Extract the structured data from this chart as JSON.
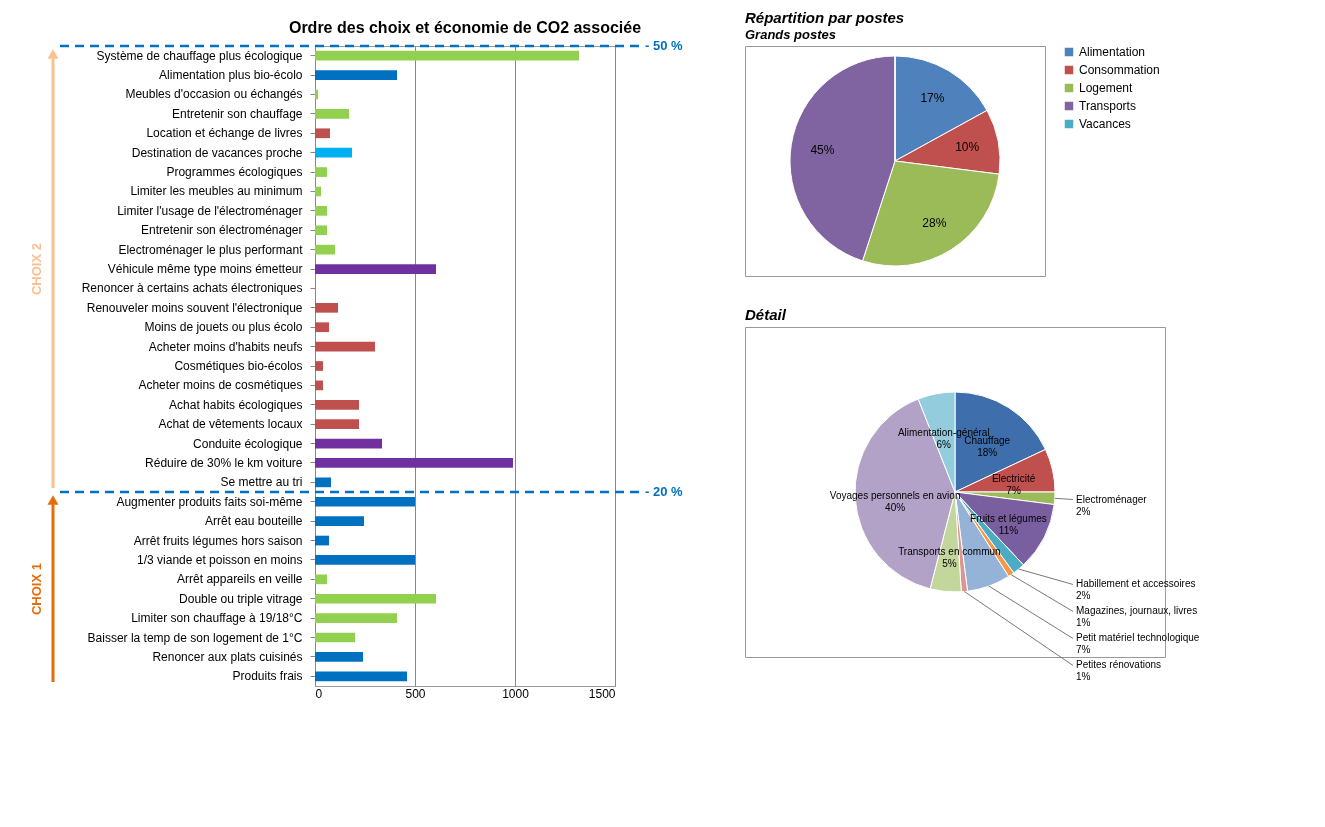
{
  "chart_data": [
    {
      "type": "bar",
      "orientation": "horizontal",
      "title": "Ordre des choix et économie de CO2 associée",
      "categories": [
        "Système de chauffage plus écologique",
        "Alimentation plus bio-écolo",
        "Meubles d'occasion ou échangés",
        "Entretenir son chauffage",
        "Location et échange de livres",
        "Destination de vacances proche",
        "Programmes écologiques",
        "Limiter les meubles au minimum",
        "Limiter l'usage de l'électroménager",
        "Entretenir son électroménager",
        "Electroménager le plus performant",
        "Véhicule même type moins émetteur",
        "Renoncer à certains achats électroniques",
        "Renouveler moins souvent l'électronique",
        "Moins de jouets ou plus écolo",
        "Acheter moins d'habits neufs",
        "Cosmétiques bio-écolos",
        "Acheter moins de cosmétiques",
        "Achat habits écologiques",
        "Achat de vêtements locaux",
        "Conduite écologique",
        "Réduire de 30% le km voiture",
        "Se mettre au tri",
        "Augmenter produits faits soi-même",
        "Arrêt eau bouteille",
        "Arrêt fruits légumes hors saison",
        "1/3 viande et poisson en moins",
        "Arrêt appareils en veille",
        "Double ou triple vitrage",
        "Limiter son chauffage à 19/18°C",
        "Baisser la temp de son logement de 1°C",
        "Renoncer aux plats cuisinés",
        "Produits frais"
      ],
      "values": [
        1320,
        410,
        15,
        170,
        75,
        185,
        60,
        30,
        60,
        60,
        100,
        605,
        0,
        115,
        70,
        300,
        40,
        40,
        220,
        220,
        335,
        990,
        80,
        500,
        245,
        70,
        500,
        60,
        605,
        410,
        200,
        240,
        460
      ],
      "colors": [
        "#92d050",
        "#0070c0",
        "#92d050",
        "#92d050",
        "#c0504d",
        "#00b0f0",
        "#92d050",
        "#92d050",
        "#92d050",
        "#92d050",
        "#92d050",
        "#7030a0",
        "#7030a0",
        "#c0504d",
        "#c0504d",
        "#c0504d",
        "#c0504d",
        "#c0504d",
        "#c0504d",
        "#c0504d",
        "#7030a0",
        "#7030a0",
        "#0070c0",
        "#0070c0",
        "#0070c0",
        "#0070c0",
        "#0070c0",
        "#92d050",
        "#92d050",
        "#92d050",
        "#92d050",
        "#0070c0",
        "#0070c0"
      ],
      "xlim": [
        0,
        1500
      ],
      "xticks": [
        0,
        500,
        1000,
        1500
      ],
      "grid": "x",
      "ref_lines": [
        {
          "axis": "y",
          "value": "Système de chauffage plus écologique",
          "label": "- 50 %",
          "color": "#0070c0",
          "line_style": "dashed"
        },
        {
          "axis": "y",
          "value": "Augmenter produits faits soi-même",
          "label": "- 20 %",
          "color": "#0070c0",
          "line_style": "dashed"
        }
      ],
      "annotations": [
        "CHOIX 2",
        "CHOIX 1"
      ]
    },
    {
      "type": "pie",
      "title": "Répartition par postes",
      "subtitle": "Grands postes",
      "categories": [
        "Alimentation",
        "Consommation",
        "Logement",
        "Transports",
        "Vacances"
      ],
      "values": [
        17,
        10,
        28,
        45,
        0
      ],
      "colors": [
        "#4f81bd",
        "#c0504d",
        "#9bbb59",
        "#8064a2",
        "#4bacc6"
      ],
      "value_labels": [
        "17%",
        "10%",
        "28%",
        "45%",
        null
      ],
      "legend": "right"
    },
    {
      "type": "pie",
      "title": "Détail",
      "categories": [
        "Chauffage",
        "Electricité",
        "Electroménager",
        "Fruits et légumes",
        "Habillement et accessoires",
        "Magazines, journaux, livres",
        "Petit matériel technologique",
        "Petites rénovations",
        "Transports en commun",
        "Voyages personnels en avion",
        "Alimentation-général"
      ],
      "values": [
        18,
        7,
        2,
        11,
        2,
        1,
        7,
        1,
        5,
        40,
        6
      ],
      "colors": [
        "#3e6eab",
        "#c0504d",
        "#9bbb59",
        "#7a5fa0",
        "#4bacc6",
        "#f79646",
        "#95b3d7",
        "#d99694",
        "#c3d69b",
        "#b3a2c7",
        "#93cddd"
      ],
      "value_labels": [
        "18%",
        "7%",
        "2%",
        "11%",
        "2%",
        "1%",
        "7%",
        "1%",
        "5%",
        "40%",
        "6%"
      ],
      "legend": false
    }
  ]
}
